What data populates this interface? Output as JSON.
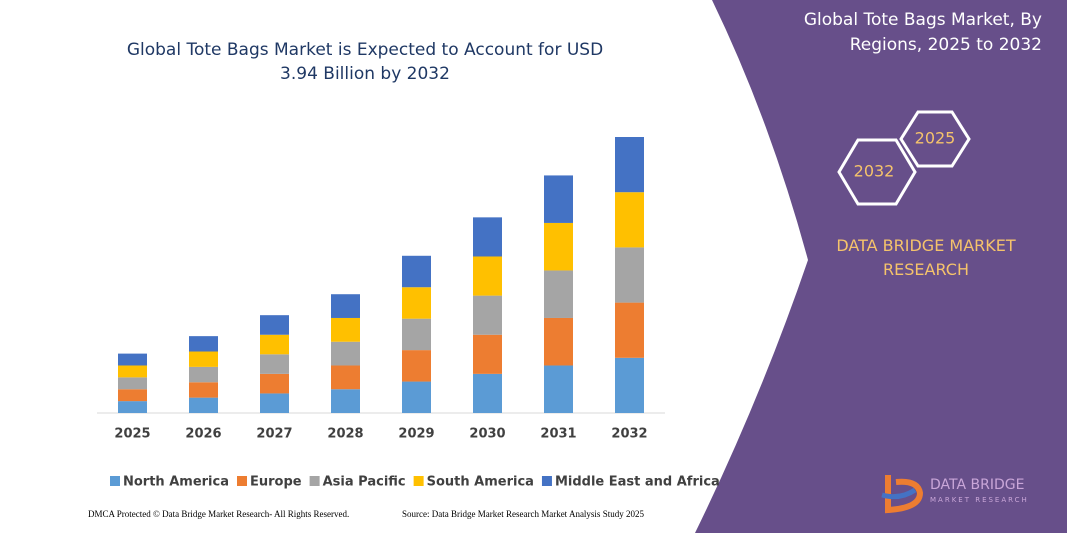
{
  "chart_data": {
    "type": "stacked_bar",
    "title": "Global Tote Bags Market is Expected to Account for USD 3.94 Billion by 2032",
    "categories": [
      "2025",
      "2026",
      "2027",
      "2028",
      "2029",
      "2030",
      "2031",
      "2032"
    ],
    "series": [
      {
        "name": "North America",
        "color": "#5b9bd5",
        "values": [
          0.17,
          0.22,
          0.28,
          0.34,
          0.45,
          0.56,
          0.68,
          0.79
        ]
      },
      {
        "name": "Europe",
        "color": "#ed7d31",
        "values": [
          0.17,
          0.22,
          0.28,
          0.34,
          0.45,
          0.56,
          0.68,
          0.79
        ]
      },
      {
        "name": "Asia Pacific",
        "color": "#a5a5a5",
        "values": [
          0.17,
          0.22,
          0.28,
          0.34,
          0.45,
          0.56,
          0.68,
          0.79
        ]
      },
      {
        "name": "South America",
        "color": "#ffc000",
        "values": [
          0.17,
          0.22,
          0.28,
          0.34,
          0.45,
          0.56,
          0.68,
          0.79
        ]
      },
      {
        "name": "Middle East and Africa",
        "color": "#4472c4",
        "values": [
          0.17,
          0.22,
          0.28,
          0.34,
          0.45,
          0.56,
          0.68,
          0.79
        ]
      }
    ],
    "legend": "bottom",
    "footer_left": "DMCA Protected © Data Bridge Market Research- All Rights Reserved.",
    "footer_right": "Source: Data Bridge Market Research Market Analysis Study 2025"
  },
  "panel": {
    "title": "Global Tote Bags Market, By Regions, 2025 to 2032",
    "hexagons": [
      "2025",
      "2032"
    ],
    "brand": "DATA BRIDGE MARKET RESEARCH",
    "logo": [
      "DATA BRIDGE",
      "MARKET RESEARCH"
    ]
  }
}
